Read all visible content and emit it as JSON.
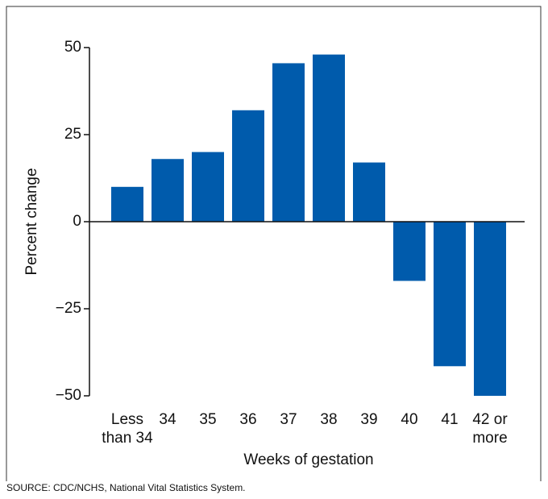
{
  "chart_data": {
    "type": "bar",
    "y_label": "Percent change",
    "x_label": "Weeks of gestation",
    "source": "SOURCE: CDC/NCHS, National Vital Statistics System.",
    "categories": [
      "Less than 34",
      "34",
      "35",
      "36",
      "37",
      "38",
      "39",
      "40",
      "41",
      "42 or more"
    ],
    "values": [
      10,
      18,
      20,
      32,
      45.5,
      48,
      17,
      -17,
      -41.5,
      -50
    ],
    "color": "#005bac",
    "ylim": [
      -50,
      50
    ],
    "yticks": [
      {
        "value": -50,
        "label": "−50"
      },
      {
        "value": -25,
        "label": "−25"
      },
      0,
      25,
      50
    ],
    "grid": false
  }
}
